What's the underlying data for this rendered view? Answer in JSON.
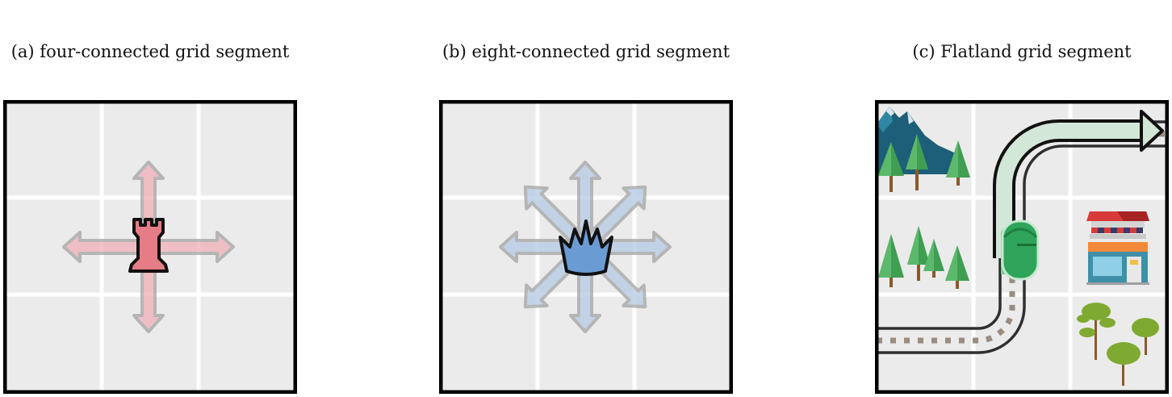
{
  "panels": [
    {
      "id": "a",
      "caption": "(a) four-connected grid segment",
      "piece": "rook-icon",
      "piece_color": "#e57c86",
      "arrow_color": "#f0b4bb",
      "directions": 4
    },
    {
      "id": "b",
      "caption": "(b) eight-connected grid segment",
      "piece": "crown-icon",
      "piece_color": "#6b9bd3",
      "arrow_color": "#b9cde6",
      "directions": 8
    },
    {
      "id": "c",
      "caption": "(c) Flatland grid segment",
      "elements": [
        "mountain-icon",
        "pine-tree-icon",
        "train-icon",
        "rail-track",
        "station-building-icon",
        "deciduous-tree-icon",
        "path-arrow-icon"
      ],
      "train_color": "#2ea55a"
    }
  ],
  "colors": {
    "grid_bg": "#ebebeb",
    "grid_line": "#ffffff",
    "border": "#000000"
  }
}
